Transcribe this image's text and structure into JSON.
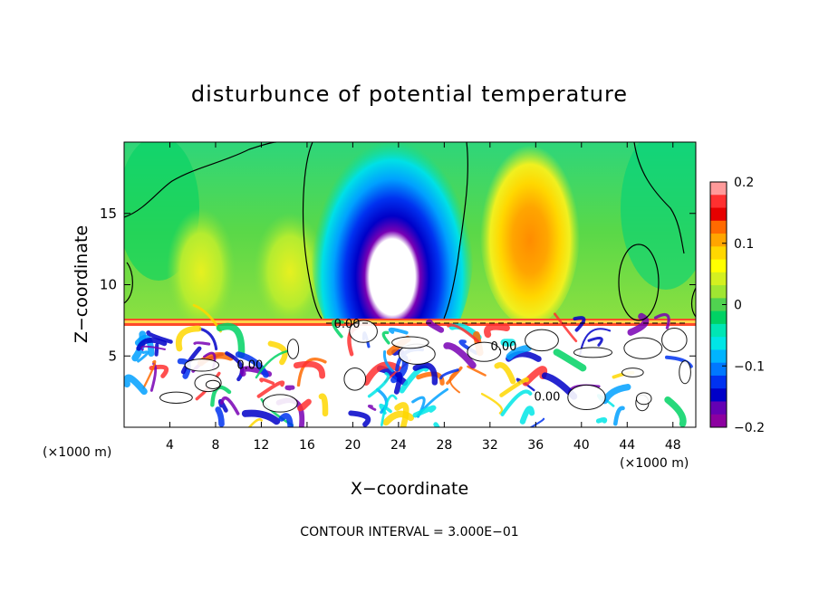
{
  "chart_data": {
    "type": "heatmap",
    "title": "disturbunce of potential temperature",
    "xlabel": "X−coordinate",
    "ylabel": "Z−coordinate",
    "x_unit": "(×1000 m)",
    "footer": "CONTOUR INTERVAL = 3.000E−01",
    "xlim": [
      0,
      50
    ],
    "ylim": [
      0,
      20
    ],
    "x_ticks": [
      4,
      8,
      12,
      16,
      20,
      24,
      28,
      32,
      36,
      40,
      44,
      48
    ],
    "y_ticks": [
      5,
      10,
      15
    ],
    "colorbar": {
      "range": [
        -0.2,
        0.2
      ],
      "tick_values": [
        0.2,
        0.1,
        0,
        -0.1,
        -0.2
      ],
      "tick_labels": [
        "0.2",
        "0.1",
        "0",
        "−0.1",
        "−0.2"
      ],
      "colors": [
        "#ff9a9a",
        "#ff3030",
        "#e60000",
        "#ff6a00",
        "#ffa500",
        "#ffd700",
        "#ffff00",
        "#d4f020",
        "#a0e632",
        "#50d250",
        "#00d264",
        "#00e6b4",
        "#00e6e6",
        "#00b4ff",
        "#0078ff",
        "#0032f0",
        "#0000c8",
        "#6400b4",
        "#8c00a0"
      ]
    },
    "contour_labels": [
      {
        "text": "0.00",
        "x": 19.5,
        "y": 7.3
      },
      {
        "text": "0.00",
        "x": 11,
        "y": 4.4
      },
      {
        "text": "0.00",
        "x": 33.2,
        "y": 5.7
      },
      {
        "text": "0.00",
        "x": 37,
        "y": 2.2
      }
    ],
    "upper_layer_features": [
      {
        "name": "negative anomaly",
        "x": 23.5,
        "z": 11.5,
        "value": -0.2
      },
      {
        "name": "positive anomaly",
        "x": 35,
        "z": 11,
        "value": 0.12
      },
      {
        "name": "positive anomaly",
        "x": 7,
        "z": 12,
        "value": 0.05
      },
      {
        "name": "positive anomaly",
        "x": 15,
        "z": 11,
        "value": 0.05
      }
    ],
    "layer_interface_z": 7.3
  }
}
